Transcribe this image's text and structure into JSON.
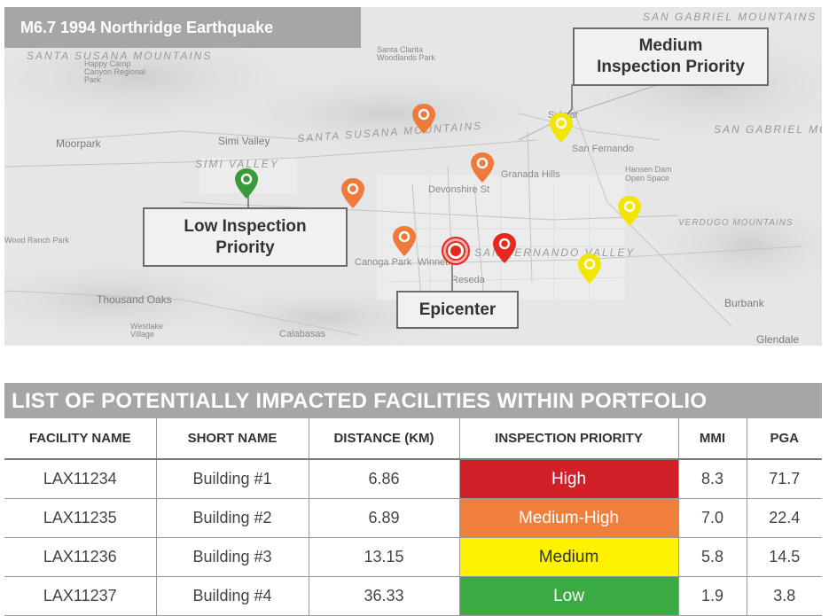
{
  "map": {
    "title": "M6.7 1994 Northridge Earthquake",
    "callouts": {
      "medium": [
        "Medium",
        "Inspection Priority"
      ],
      "low": [
        "Low Inspection",
        "Priority"
      ],
      "epicenter": "Epicenter"
    },
    "places": {
      "moorpark": "Moorpark",
      "simi_valley": "Simi Valley",
      "simi_range": "SIMI VALLEY",
      "santa_susana": "SANTA SUSANA MOUNTAINS",
      "san_gabriel_top": "SAN GABRIEL MOUNTAINS",
      "san_gabriel_right": "SAN GABRIEL MO",
      "santa_clarita": "Santa Clarita Woodlands Park",
      "happy_camp": "Happy Camp Canyon Regional Park",
      "san_fernando": "San Fernando",
      "sylmar": "Sylmar",
      "granada_hills": "Granada Hills",
      "devonshire": "Devonshire St",
      "canoga_park": "Canoga Park",
      "winnetka": "Winnetka",
      "reseda": "Reseda",
      "san_fernando_valley": "SAN FERNANDO VALLEY",
      "thousand_oaks": "Thousand Oaks",
      "westlake": "Westlake Village",
      "calabasas": "Calabasas",
      "burbank": "Burbank",
      "glendale": "Glendale",
      "verdugo": "VERDUGO MOUNTAINS",
      "hansen_dam": "Hansen Dam Open Space",
      "santa_susana_left": "SANTA SUSANA MOUNTAINS",
      "wood_ranch": "Wood Ranch Park"
    },
    "pins": [
      {
        "id": "pin-low-1",
        "color": "#3a9a3a"
      },
      {
        "id": "pin-mh-1",
        "color": "#f07a3a"
      },
      {
        "id": "pin-mh-2",
        "color": "#f07a3a"
      },
      {
        "id": "pin-mh-3",
        "color": "#f07a3a"
      },
      {
        "id": "pin-mh-4",
        "color": "#f07a3a"
      },
      {
        "id": "pin-high-1",
        "color": "#e8281e"
      },
      {
        "id": "pin-med-1",
        "color": "#f2e600"
      },
      {
        "id": "pin-med-2",
        "color": "#f2e600"
      },
      {
        "id": "pin-med-3",
        "color": "#f2e600"
      }
    ]
  },
  "list": {
    "title": "LIST OF POTENTIALLY IMPACTED FACILITIES WITHIN PORTFOLIO",
    "columns": [
      "FACILITY NAME",
      "SHORT NAME",
      "DISTANCE (KM)",
      "INSPECTION PRIORITY",
      "MMI",
      "PGA"
    ],
    "rows": [
      {
        "facility": "LAX11234",
        "short": "Building #1",
        "distance": "6.86",
        "priority": "High",
        "priority_color": "#d12027",
        "mmi": "8.3",
        "pga": "71.7"
      },
      {
        "facility": "LAX11235",
        "short": "Building #2",
        "distance": "6.89",
        "priority": "Medium-High",
        "priority_color": "#f07f3c",
        "mmi": "7.0",
        "pga": "22.4"
      },
      {
        "facility": "LAX11236",
        "short": "Building #3",
        "distance": "13.15",
        "priority": "Medium",
        "priority_color": "#fff200",
        "mmi": "5.8",
        "pga": "14.5"
      },
      {
        "facility": "LAX11237",
        "short": "Building #4",
        "distance": "36.33",
        "priority": "Low",
        "priority_color": "#3aaa42",
        "mmi": "1.9",
        "pga": "3.8"
      }
    ]
  }
}
